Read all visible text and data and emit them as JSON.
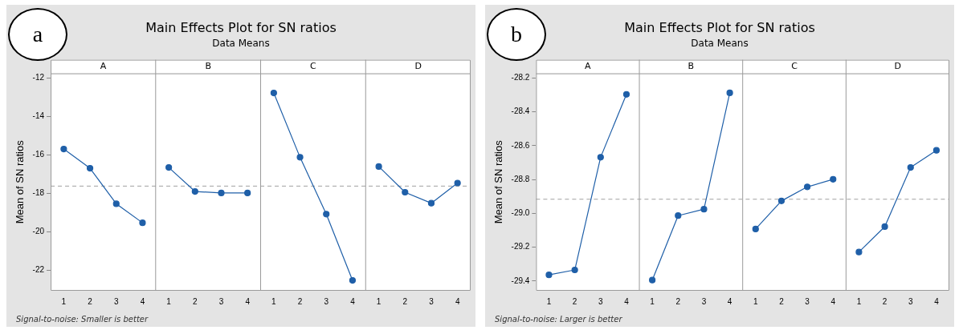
{
  "chart_data": [
    {
      "type": "line",
      "title": "Main Effects Plot for SN ratios",
      "subtitle": "Data Means",
      "ylabel": "Mean of SN ratios",
      "annotations": [
        "a",
        "Signal-to-noise: Smaller is better",
        "A",
        "B",
        "C",
        "D"
      ],
      "categories": [
        "1",
        "2",
        "3",
        "4",
        "1",
        "2",
        "3",
        "4",
        "1",
        "2",
        "3",
        "4",
        "1",
        "2",
        "3",
        "4"
      ],
      "marker": "circle",
      "grid": false,
      "legend": false,
      "ylim": [
        -23.08,
        -11.76
      ],
      "yticks": [
        -12,
        -14,
        -16,
        -18,
        -20,
        -22
      ],
      "ref_lines": [
        {
          "axis": "y",
          "value": -17.63,
          "color": "#a0a0a0",
          "line_style": "dashed"
        }
      ],
      "series": [
        {
          "color": "#1f5fa8",
          "values": [
            -15.7,
            -16.7,
            -18.55,
            -19.54,
            null,
            null,
            null,
            null,
            null,
            null,
            null,
            null,
            null,
            null,
            null,
            null
          ]
        },
        {
          "color": "#1f5fa8",
          "values": [
            null,
            null,
            null,
            null,
            -16.66,
            -17.91,
            -17.99,
            -17.99,
            null,
            null,
            null,
            null,
            null,
            null,
            null,
            null
          ]
        },
        {
          "color": "#1f5fa8",
          "values": [
            null,
            null,
            null,
            null,
            null,
            null,
            null,
            null,
            -12.78,
            -16.13,
            -19.09,
            -22.54,
            null,
            null,
            null,
            null
          ]
        },
        {
          "color": "#1f5fa8",
          "values": [
            null,
            null,
            null,
            null,
            null,
            null,
            null,
            null,
            null,
            null,
            null,
            null,
            -16.61,
            -17.95,
            -18.52,
            -17.47
          ]
        }
      ]
    },
    {
      "type": "line",
      "title": "Main Effects Plot for SN ratios",
      "subtitle": "Data Means",
      "ylabel": "Mean of SN ratios",
      "annotations": [
        "b",
        "Signal-to-noise: Larger is better",
        "A",
        "B",
        "C",
        "D"
      ],
      "categories": [
        "1",
        "2",
        "3",
        "4",
        "1",
        "2",
        "3",
        "4",
        "1",
        "2",
        "3",
        "4",
        "1",
        "2",
        "3",
        "4"
      ],
      "marker": "circle",
      "grid": false,
      "legend": false,
      "ylim": [
        -29.458,
        -28.173
      ],
      "yticks": [
        -28.2,
        -28.4,
        -28.6,
        -28.8,
        {
          "value": -29,
          "label": "-29.0"
        },
        -29.2,
        -29.4
      ],
      "ref_lines": [
        {
          "axis": "y",
          "value": -28.917,
          "color": "#a0a0a0",
          "line_style": "dashed"
        }
      ],
      "series": [
        {
          "color": "#1f5fa8",
          "values": [
            -29.364,
            -29.335,
            -28.669,
            -28.297,
            null,
            null,
            null,
            null,
            null,
            null,
            null,
            null,
            null,
            null,
            null,
            null
          ]
        },
        {
          "color": "#1f5fa8",
          "values": [
            null,
            null,
            null,
            null,
            -29.395,
            -29.014,
            -28.976,
            -28.288,
            null,
            null,
            null,
            null,
            null,
            null,
            null,
            null
          ]
        },
        {
          "color": "#1f5fa8",
          "values": [
            null,
            null,
            null,
            null,
            null,
            null,
            null,
            null,
            -29.093,
            -28.927,
            -28.844,
            -28.799,
            null,
            null,
            null,
            null
          ]
        },
        {
          "color": "#1f5fa8",
          "values": [
            null,
            null,
            null,
            null,
            null,
            null,
            null,
            null,
            null,
            null,
            null,
            null,
            -29.229,
            -29.079,
            -28.729,
            -28.628
          ]
        }
      ]
    }
  ]
}
